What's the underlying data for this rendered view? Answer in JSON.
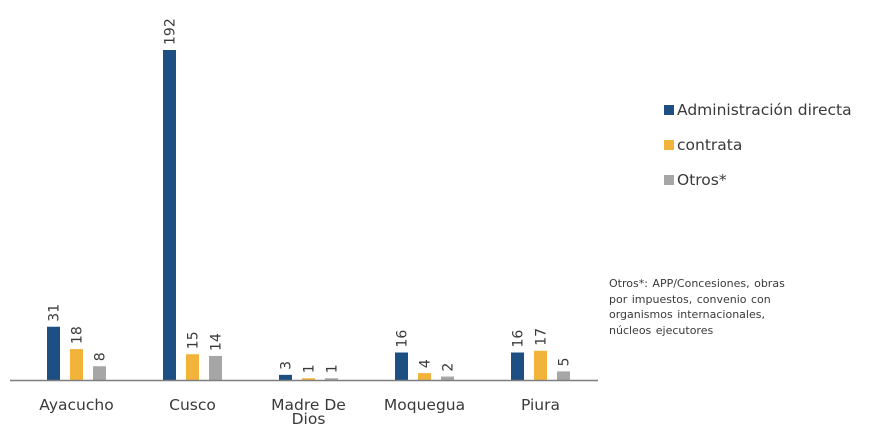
{
  "chart_data": {
    "type": "bar",
    "categories": [
      "Ayacucho",
      "Cusco",
      "Madre De Dios",
      "Moquegua",
      "Piura"
    ],
    "category_labels": [
      [
        "Ayacucho"
      ],
      [
        "Cusco"
      ],
      [
        "Madre De",
        "Dios"
      ],
      [
        "Moquegua"
      ],
      [
        "Piura"
      ]
    ],
    "series": [
      {
        "name": "Administración directa",
        "color": "#1d4f82",
        "values": [
          31,
          192,
          3,
          16,
          16
        ]
      },
      {
        "name": "contrata",
        "color": "#f2b33b",
        "values": [
          18,
          15,
          1,
          4,
          17
        ]
      },
      {
        "name": "Otros*",
        "color": "#a6a6a6",
        "values": [
          8,
          14,
          1,
          2,
          5
        ]
      }
    ],
    "ylim": [
      0,
      200
    ],
    "grid": false,
    "legend_position": "right",
    "data_labels": "rotated"
  },
  "footnote": "Otros*: APP/Concesiones, obras\npor impuestos, convenio con\norganismos internacionales,\nnúcleos ejecutores",
  "colors": {
    "axis": "#7f7f7f",
    "text": "#3a3a3a"
  }
}
